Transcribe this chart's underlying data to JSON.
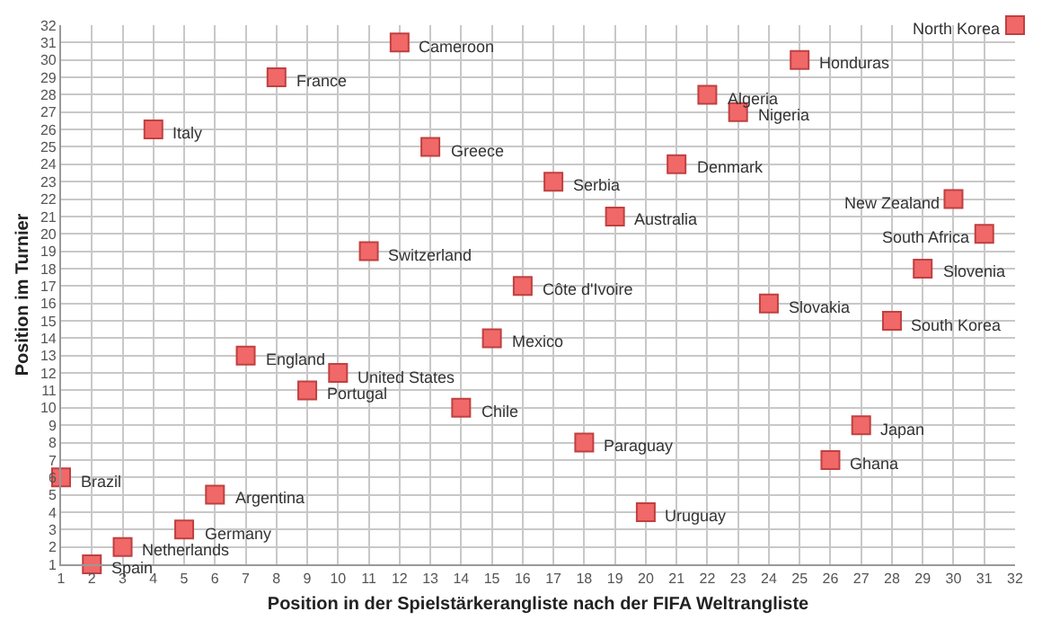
{
  "chart_data": {
    "type": "scatter",
    "xlabel": "Position in der Spielstärkerangliste nach der FIFA Weltrangliste",
    "ylabel": "Position im Turnier",
    "x": [
      2,
      3,
      5,
      6,
      1,
      7,
      9,
      10,
      14,
      15,
      11,
      4,
      8,
      12,
      13,
      16,
      17,
      19,
      21,
      22,
      23,
      25,
      32,
      30,
      31,
      29,
      24,
      28,
      27,
      26,
      18,
      20
    ],
    "values": [
      1,
      2,
      3,
      5,
      6,
      13,
      11,
      12,
      10,
      14,
      19,
      26,
      29,
      31,
      25,
      17,
      23,
      21,
      24,
      28,
      27,
      30,
      32,
      22,
      20,
      18,
      16,
      15,
      9,
      7,
      8,
      4
    ],
    "color": "#f06868",
    "marker": "square",
    "grid": true,
    "legend": false,
    "xlim": [
      1,
      32
    ],
    "ylim": [
      1,
      32
    ],
    "xticks": [
      1,
      2,
      3,
      4,
      5,
      6,
      7,
      8,
      9,
      10,
      11,
      12,
      13,
      14,
      15,
      16,
      17,
      18,
      19,
      20,
      21,
      22,
      23,
      24,
      25,
      26,
      27,
      28,
      29,
      30,
      31,
      32
    ],
    "yticks": [
      1,
      2,
      3,
      4,
      5,
      6,
      7,
      8,
      9,
      10,
      11,
      12,
      13,
      14,
      15,
      16,
      17,
      18,
      19,
      20,
      21,
      22,
      23,
      24,
      25,
      26,
      27,
      28,
      29,
      30,
      31,
      32
    ],
    "annotations": [
      {
        "text": "Spain",
        "x": 2,
        "y": 1
      },
      {
        "text": "Netherlands",
        "x": 3,
        "y": 2
      },
      {
        "text": "Germany",
        "x": 5,
        "y": 3
      },
      {
        "text": "Argentina",
        "x": 6,
        "y": 5
      },
      {
        "text": "Brazil",
        "x": 1,
        "y": 6
      },
      {
        "text": "England",
        "x": 7,
        "y": 13
      },
      {
        "text": "Portugal",
        "x": 9,
        "y": 11
      },
      {
        "text": "United States",
        "x": 10,
        "y": 12
      },
      {
        "text": "Chile",
        "x": 14,
        "y": 10
      },
      {
        "text": "Mexico",
        "x": 15,
        "y": 14
      },
      {
        "text": "Switzerland",
        "x": 11,
        "y": 19
      },
      {
        "text": "Italy",
        "x": 4,
        "y": 26
      },
      {
        "text": "France",
        "x": 8,
        "y": 29
      },
      {
        "text": "Cameroon",
        "x": 12,
        "y": 31
      },
      {
        "text": "Greece",
        "x": 13,
        "y": 25
      },
      {
        "text": "Côte d'Ivoire",
        "x": 16,
        "y": 17
      },
      {
        "text": "Serbia",
        "x": 17,
        "y": 23
      },
      {
        "text": "Australia",
        "x": 19,
        "y": 21
      },
      {
        "text": "Denmark",
        "x": 21,
        "y": 24
      },
      {
        "text": "Algeria",
        "x": 22,
        "y": 28
      },
      {
        "text": "Nigeria",
        "x": 23,
        "y": 27
      },
      {
        "text": "Honduras",
        "x": 25,
        "y": 30
      },
      {
        "text": "North Korea",
        "x": 32,
        "y": 32
      },
      {
        "text": "New Zealand",
        "x": 30,
        "y": 22
      },
      {
        "text": "South Africa",
        "x": 31,
        "y": 20
      },
      {
        "text": "Slovenia",
        "x": 29,
        "y": 18
      },
      {
        "text": "Slovakia",
        "x": 24,
        "y": 16
      },
      {
        "text": "South Korea",
        "x": 28,
        "y": 15
      },
      {
        "text": "Japan",
        "x": 27,
        "y": 9
      },
      {
        "text": "Ghana",
        "x": 26,
        "y": 7
      },
      {
        "text": "Paraguay",
        "x": 18,
        "y": 8
      },
      {
        "text": "Uruguay",
        "x": 20,
        "y": 4
      }
    ]
  }
}
